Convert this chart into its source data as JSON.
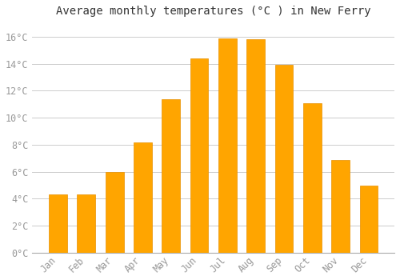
{
  "title": "Average monthly temperatures (°C ) in New Ferry",
  "months": [
    "Jan",
    "Feb",
    "Mar",
    "Apr",
    "May",
    "Jun",
    "Jul",
    "Aug",
    "Sep",
    "Oct",
    "Nov",
    "Dec"
  ],
  "values": [
    4.3,
    4.3,
    6.0,
    8.2,
    11.4,
    14.4,
    15.9,
    15.8,
    13.9,
    11.1,
    6.9,
    5.0
  ],
  "bar_color": "#FFA500",
  "bar_edge_color": "#E89000",
  "background_color": "#FFFFFF",
  "plot_bg_color": "#FFFFFF",
  "grid_color": "#CCCCCC",
  "ylim": [
    0,
    17
  ],
  "yticks": [
    0,
    2,
    4,
    6,
    8,
    10,
    12,
    14,
    16
  ],
  "title_fontsize": 10,
  "tick_fontsize": 8.5,
  "tick_color": "#999999",
  "title_color": "#333333",
  "title_font": "monospace",
  "tick_font": "monospace"
}
